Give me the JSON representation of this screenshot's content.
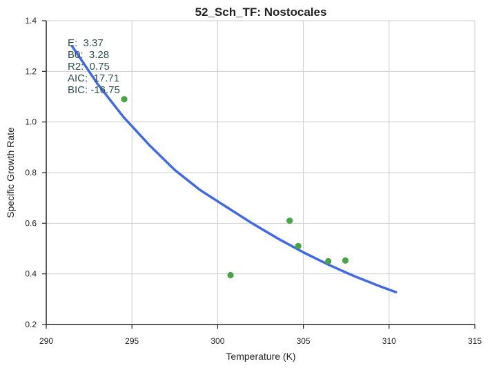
{
  "chart_data": {
    "type": "scatter",
    "title": "52_Sch_TF: Nostocales",
    "xlabel": "Temperature (K)",
    "ylabel": "Specific Growth Rate",
    "xlim": [
      290,
      315
    ],
    "ylim": [
      0.2,
      1.4
    ],
    "xticks": [
      "290",
      "295",
      "300",
      "305",
      "310",
      "315"
    ],
    "yticks": [
      "0.2",
      "0.4",
      "0.6",
      "0.8",
      "1.0",
      "1.2",
      "1.4"
    ],
    "grid": true,
    "points": {
      "name": "",
      "color": "#47a447",
      "x": [
        294.55,
        300.75,
        304.2,
        304.7,
        306.45,
        307.45
      ],
      "y": [
        1.09,
        0.395,
        0.61,
        0.51,
        0.45,
        0.453
      ]
    },
    "fit": {
      "name": "",
      "color": "#4169e1",
      "x": [
        291.5,
        293.0,
        294.5,
        296.0,
        297.5,
        299.0,
        300.5,
        302.0,
        303.5,
        305.0,
        306.5,
        308.0,
        309.5,
        310.4
      ],
      "y": [
        1.3,
        1.15,
        1.02,
        0.91,
        0.81,
        0.73,
        0.665,
        0.6,
        0.54,
        0.485,
        0.435,
        0.39,
        0.35,
        0.328
      ]
    },
    "annotations": [
      "E:  3.37",
      "B0:  3.28",
      "R2:  0.75",
      "AIC:  17.71",
      "BIC: -16.75"
    ],
    "annotation_color": "#2f4f4f"
  }
}
